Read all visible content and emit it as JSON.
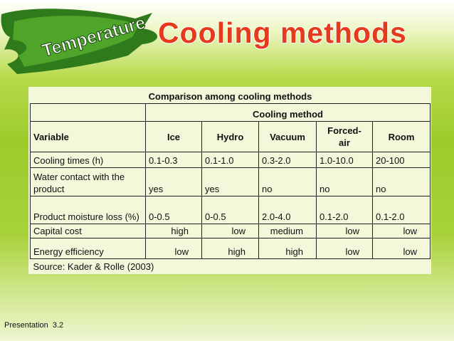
{
  "header": {
    "badge": "Temperature",
    "title": "Cooling methods"
  },
  "table": {
    "caption": "Comparison among cooling methods",
    "group_header": "Cooling method",
    "columns": [
      "Variable",
      "Ice",
      "Hydro",
      "Vacuum",
      "Forced-air",
      "Room"
    ],
    "rows": [
      [
        "Cooling times (h)",
        "0.1-0.3",
        "0.1-1.0",
        "0.3-2.0",
        "1.0-10.0",
        "20-100"
      ],
      [
        "Water contact with the product",
        "yes",
        "yes",
        "no",
        "no",
        "no"
      ],
      [
        "Product moisture loss (%)",
        "0-0.5",
        "0-0.5",
        "2.0-4.0",
        "0.1-2.0",
        "0.1-2.0"
      ],
      [
        "Capital cost",
        "high",
        "low",
        "medium",
        "low",
        "low"
      ],
      [
        "Energy efficiency",
        "low",
        "high",
        "high",
        "low",
        "low"
      ]
    ],
    "source": "Source: Kader & Rolle (2003)"
  },
  "footer": {
    "label": "Presentation  3.2"
  }
}
